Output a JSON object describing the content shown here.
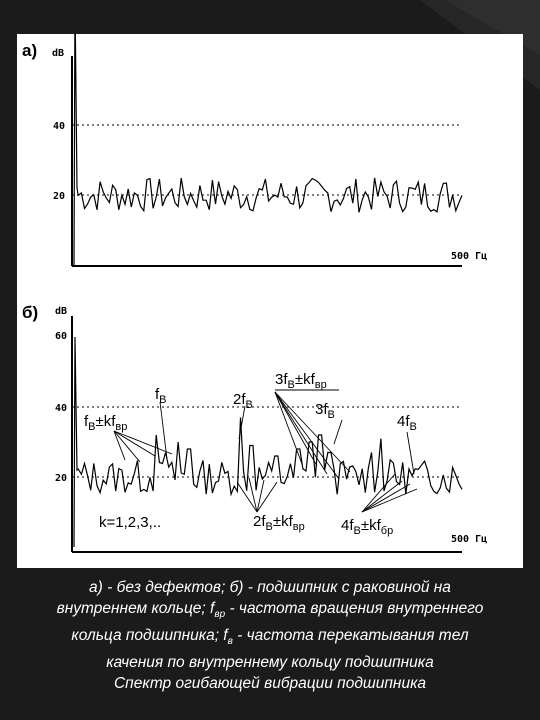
{
  "colors": {
    "background": "#1b1b1b",
    "panel": "#ffffff",
    "ink": "#000000",
    "caption": "#ffffff"
  },
  "chart_data": [
    {
      "type": "line",
      "panel_label": "а)",
      "ylabel": "dB",
      "xlabel": "500 Гц",
      "ylim": [
        0,
        80
      ],
      "xlim": [
        0,
        500
      ],
      "yticks": [
        40,
        20
      ],
      "gridlines": [
        40,
        20
      ],
      "series": [
        {
          "points_every_hz": 4,
          "noise_floor_db": 20,
          "peak": {
            "x": 2,
            "y": 76
          }
        }
      ]
    },
    {
      "type": "line",
      "panel_label": "б)",
      "ylabel": "dB",
      "xlabel": "500 Гц",
      "ylim": [
        0,
        64
      ],
      "xlim": [
        0,
        500
      ],
      "yticks": [
        60,
        40,
        20
      ],
      "gridlines": [
        40,
        20
      ],
      "series": [
        {
          "points_every_hz": 4,
          "noise_floor_db": 20,
          "peak": {
            "x": 2,
            "y": 60
          }
        }
      ],
      "annotations": {
        "fB": "f",
        "fB_sub": "В",
        "fB_kfvr": "f",
        "fB_kfvr_sub1": "В",
        "fB_kfvr_mid": "±kf",
        "fB_kfvr_sub2": "вр",
        "two_fB": "2f",
        "two_fB_sub": "В",
        "three_fB_kf": "3f",
        "three_fB_kf_sub1": "В",
        "three_fB_kf_mid": "±kf",
        "three_fB_kf_sub2": "вр",
        "three_fB": "3f",
        "three_fB_sub": "В",
        "four_fB": "4f",
        "four_fB_sub": "В",
        "two_fB_kf": "2f",
        "two_fB_kf_sub1": "В",
        "two_fB_kf_mid": "±kf",
        "two_fB_kf_sub2": "вр",
        "four_fB_kf": "4f",
        "four_fB_kf_sub1": "В",
        "four_fB_kf_mid": "±kf",
        "four_fB_kf_sub2": "бр",
        "k_values": "k=1,2,3,.."
      }
    }
  ],
  "caption": {
    "line1": "а) - без дефектов; б) - подшипник с раковиной на",
    "line2_a": "внутреннем кольце; f",
    "line2_sub": "вр",
    "line2_b": " - частота вращения внутреннего",
    "line3_a": "кольца подшипника; f",
    "line3_sub": "в",
    "line3_b": " - частота перекатывания тел",
    "line4": "качения по внутреннему кольцу подшипника",
    "line5": "Спектр огибающей вибрации подшипника"
  }
}
